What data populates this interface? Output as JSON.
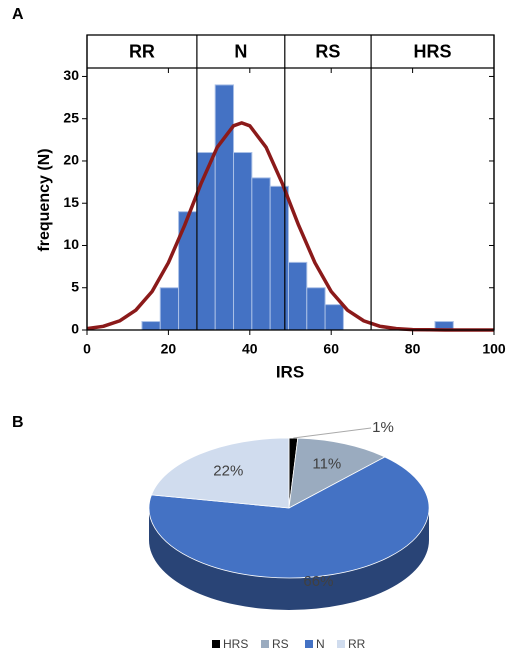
{
  "chart_data": [
    {
      "type": "histogram",
      "panel": "A",
      "bins": [
        13.5,
        18,
        22.5,
        27,
        31.5,
        36,
        40.5,
        45,
        49.5,
        54,
        58.5,
        63,
        67.5,
        72,
        76.5,
        81,
        85.5,
        90
      ],
      "counts": [
        1,
        5,
        14,
        21,
        29,
        21,
        18,
        17,
        8,
        5,
        3,
        0,
        0,
        0,
        0,
        0,
        1
      ],
      "color": "#4472c4",
      "curve": {
        "x": [
          0,
          4,
          8,
          12,
          16,
          20,
          24,
          28,
          32,
          36,
          38,
          40,
          44,
          48,
          52,
          56,
          60,
          64,
          68,
          72,
          76,
          80,
          84,
          88,
          92,
          96,
          100
        ],
        "values": [
          0.16,
          0.44,
          1.08,
          2.34,
          4.56,
          7.96,
          12.4,
          17.31,
          21.62,
          24.16,
          24.5,
          24.16,
          21.62,
          17.31,
          12.4,
          7.96,
          4.56,
          2.34,
          1.08,
          0.44,
          0.16,
          0.05,
          0.02,
          0,
          0,
          0,
          0
        ],
        "color": "#8b1a1a"
      },
      "region_labels": [
        "RR",
        "N",
        "RS",
        "HRS"
      ],
      "region_bounds": [
        0,
        27,
        48.6,
        69.8,
        100
      ],
      "xlabel": "IRS",
      "ylabel": "frequency (N)",
      "xlim": [
        0,
        100
      ],
      "ylim": [
        0,
        31
      ],
      "xticks": [
        0,
        20,
        40,
        60,
        80,
        100
      ],
      "yticks": [
        0,
        5,
        10,
        15,
        20,
        25,
        30
      ]
    },
    {
      "type": "pie",
      "panel": "B",
      "categories": [
        "HRS",
        "RS",
        "N",
        "RR"
      ],
      "values": [
        1,
        11,
        66,
        22
      ],
      "value_labels": [
        "1%",
        "11%",
        "66%",
        "22%"
      ],
      "colors": [
        "#000000",
        "#9aabbf",
        "#4472c4",
        "#d0dcee"
      ]
    }
  ]
}
